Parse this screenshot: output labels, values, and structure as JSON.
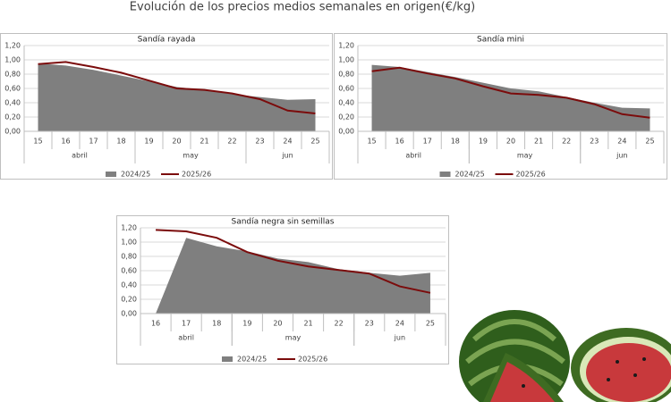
{
  "title": "Evolución de los precios medios semanales en origen(€/kg)",
  "chart_data": [
    {
      "type": "area-line",
      "title": "Sandía rayada",
      "categories": [
        "15",
        "16",
        "17",
        "18",
        "19",
        "20",
        "21",
        "22",
        "23",
        "24",
        "25"
      ],
      "groups": [
        {
          "label": "abril",
          "span": 4
        },
        {
          "label": "may",
          "span": 4
        },
        {
          "label": "jun",
          "span": 3
        }
      ],
      "series": [
        {
          "name": "2024/25",
          "kind": "area",
          "color": "#7f7f7f",
          "values": [
            0.95,
            0.92,
            0.86,
            0.78,
            0.7,
            0.62,
            0.58,
            0.52,
            0.48,
            0.44,
            0.45
          ]
        },
        {
          "name": "2025/26",
          "kind": "line",
          "color": "#7b0c0c",
          "values": [
            0.94,
            0.97,
            0.9,
            0.82,
            0.71,
            0.6,
            0.58,
            0.53,
            0.45,
            0.29,
            0.25
          ]
        }
      ],
      "ylim": [
        0,
        1.2
      ],
      "yticks": [
        {
          "value": 0,
          "label": "0,00"
        },
        {
          "value": 0.2,
          "label": "0,20"
        },
        {
          "value": 0.4,
          "label": "0,40"
        },
        {
          "value": 0.6,
          "label": "0,60"
        },
        {
          "value": 0.8,
          "label": "0,80"
        },
        {
          "value": 1,
          "label": "1,00"
        },
        {
          "value": 1.2,
          "label": "1,20"
        }
      ],
      "grid": true,
      "legend": "bottom"
    },
    {
      "type": "area-line",
      "title": "Sandía mini",
      "categories": [
        "15",
        "16",
        "17",
        "18",
        "19",
        "20",
        "21",
        "22",
        "23",
        "24",
        "25"
      ],
      "groups": [
        {
          "label": "abril",
          "span": 4
        },
        {
          "label": "may",
          "span": 4
        },
        {
          "label": "jun",
          "span": 3
        }
      ],
      "series": [
        {
          "name": "2024/25",
          "kind": "area",
          "color": "#7f7f7f",
          "values": [
            0.93,
            0.9,
            0.83,
            0.76,
            0.68,
            0.6,
            0.56,
            0.48,
            0.4,
            0.33,
            0.32
          ]
        },
        {
          "name": "2025/26",
          "kind": "line",
          "color": "#7b0c0c",
          "values": [
            0.84,
            0.89,
            0.81,
            0.74,
            0.63,
            0.53,
            0.51,
            0.47,
            0.38,
            0.24,
            0.19
          ]
        }
      ],
      "ylim": [
        0,
        1.2
      ],
      "yticks": [
        {
          "value": 0,
          "label": "0,00"
        },
        {
          "value": 0.2,
          "label": "0,20"
        },
        {
          "value": 0.4,
          "label": "0,40"
        },
        {
          "value": 0.6,
          "label": "0,60"
        },
        {
          "value": 0.8,
          "label": "0,80"
        },
        {
          "value": 1,
          "label": "1,00"
        },
        {
          "value": 1.2,
          "label": "1,20"
        }
      ],
      "grid": true,
      "legend": "bottom"
    },
    {
      "type": "area-line",
      "title": "Sandía negra sin semillas",
      "categories": [
        "16",
        "17",
        "18",
        "19",
        "20",
        "21",
        "22",
        "23",
        "24",
        "25"
      ],
      "groups": [
        {
          "label": "abril",
          "span": 3
        },
        {
          "label": "may",
          "span": 4
        },
        {
          "label": "jun",
          "span": 3
        }
      ],
      "series": [
        {
          "name": "2024/25",
          "kind": "area",
          "color": "#7f7f7f",
          "values": [
            0,
            1.06,
            0.94,
            0.87,
            0.77,
            0.72,
            0.62,
            0.57,
            0.53,
            0.57
          ]
        },
        {
          "name": "2025/26",
          "kind": "line",
          "color": "#7b0c0c",
          "values": [
            1.17,
            1.15,
            1.06,
            0.86,
            0.74,
            0.66,
            0.61,
            0.56,
            0.38,
            0.29
          ]
        }
      ],
      "ylim": [
        0,
        1.2
      ],
      "yticks": [
        {
          "value": 0,
          "label": "0,00"
        },
        {
          "value": 0.2,
          "label": "0,20"
        },
        {
          "value": 0.4,
          "label": "0,40"
        },
        {
          "value": 0.6,
          "label": "0,60"
        },
        {
          "value": 0.8,
          "label": "0,80"
        },
        {
          "value": 1,
          "label": "1,00"
        },
        {
          "value": 1.2,
          "label": "1,20"
        }
      ],
      "grid": true,
      "legend": "bottom"
    }
  ]
}
